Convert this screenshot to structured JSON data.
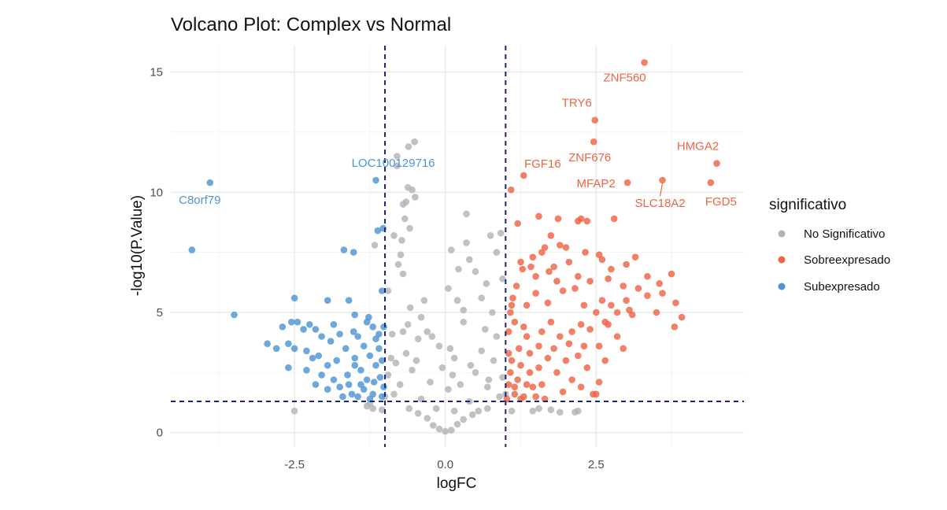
{
  "chart_data": {
    "type": "scatter",
    "title": "Volcano Plot: Complex vs Normal",
    "xlabel": "logFC",
    "ylabel": "-log10(P.Value)",
    "xlim": [
      -4.55,
      4.95
    ],
    "ylim": [
      -0.6,
      16.1
    ],
    "x_ticks": [
      -2.5,
      0.0,
      2.5
    ],
    "x_tick_labels": [
      "-2.5",
      "0.0",
      "2.5"
    ],
    "y_ticks": [
      0,
      5,
      10,
      15
    ],
    "y_tick_labels": [
      "0",
      "5",
      "10",
      "15"
    ],
    "grid": true,
    "thresholds": {
      "logFC": [
        -1,
        1
      ],
      "neg_log10_p": 1.3
    },
    "legend": {
      "title": "significativo",
      "position": "right",
      "entries": [
        {
          "name": "No Significativo",
          "color": "#b3b3b3"
        },
        {
          "name": "Sobreexpresado",
          "color": "#ee6445"
        },
        {
          "name": "Subexpresado",
          "color": "#4d95d6"
        }
      ]
    },
    "colors": {
      "No Significativo": "#b3b3b3",
      "Sobreexpresado": "#ee6445",
      "Subexpresado": "#4d95d6",
      "threshold_line": "#1a237e"
    },
    "series": [
      {
        "name": "No Significativo",
        "points": [
          [
            -0.8,
            11.5
          ],
          [
            -0.51,
            12.1
          ],
          [
            -0.61,
            11.9
          ],
          [
            -0.8,
            11.1
          ],
          [
            -0.62,
            10.2
          ],
          [
            -0.55,
            10.1
          ],
          [
            -0.5,
            9.8
          ],
          [
            -0.65,
            9.6
          ],
          [
            -1.17,
            7.8
          ],
          [
            -0.7,
            9.5
          ],
          [
            -0.85,
            8.2
          ],
          [
            -0.72,
            8.0
          ],
          [
            0.35,
            9.1
          ],
          [
            0.92,
            8.3
          ],
          [
            0.75,
            8.2
          ],
          [
            0.35,
            7.9
          ],
          [
            0.85,
            7.5
          ],
          [
            0.1,
            7.6
          ],
          [
            0.4,
            7.2
          ],
          [
            0.5,
            6.7
          ],
          [
            0.68,
            6.2
          ],
          [
            0.05,
            6.0
          ],
          [
            0.2,
            5.5
          ],
          [
            0.3,
            5.1
          ],
          [
            -0.35,
            5.5
          ],
          [
            -0.4,
            4.8
          ],
          [
            -0.3,
            4.2
          ],
          [
            -0.22,
            4.0
          ],
          [
            0.08,
            3.5
          ],
          [
            -0.1,
            3.6
          ],
          [
            0.15,
            3.1
          ],
          [
            -0.62,
            4.5
          ],
          [
            -0.45,
            3.9
          ],
          [
            -0.7,
            4.2
          ],
          [
            -1.2,
            1.0
          ],
          [
            1.1,
            0.9
          ],
          [
            1.45,
            0.9
          ],
          [
            1.9,
            0.85
          ],
          [
            2.15,
            0.85
          ],
          [
            -2.5,
            0.9
          ],
          [
            -1.3,
            1.1
          ],
          [
            0.7,
            1.0
          ],
          [
            -0.9,
            3.1
          ],
          [
            -0.95,
            2.4
          ],
          [
            0.95,
            2.3
          ],
          [
            0.8,
            3.0
          ],
          [
            -0.85,
            1.6
          ],
          [
            0.9,
            1.5
          ],
          [
            -0.6,
            1.0
          ],
          [
            0.55,
            0.9
          ],
          [
            -0.3,
            0.6
          ],
          [
            0.3,
            0.55
          ],
          [
            -0.1,
            0.15
          ],
          [
            0.1,
            0.1
          ],
          [
            0.0,
            0.05
          ],
          [
            -0.2,
            0.3
          ],
          [
            0.2,
            0.35
          ],
          [
            -0.45,
            0.8
          ],
          [
            0.45,
            0.75
          ],
          [
            -0.75,
            2.0
          ],
          [
            0.7,
            1.9
          ],
          [
            -0.65,
            3.3
          ],
          [
            0.6,
            3.4
          ],
          [
            -0.55,
            2.6
          ],
          [
            0.5,
            2.5
          ],
          [
            -0.4,
            1.4
          ],
          [
            0.4,
            1.3
          ],
          [
            -0.95,
            5.9
          ],
          [
            0.95,
            6.4
          ],
          [
            -0.7,
            6.6
          ],
          [
            0.6,
            5.6
          ],
          [
            -0.78,
            7.0
          ],
          [
            0.3,
            4.6
          ],
          [
            -0.25,
            2.1
          ],
          [
            0.25,
            2.0
          ],
          [
            -0.15,
            1.0
          ],
          [
            0.15,
            0.9
          ],
          [
            -0.88,
            4.1
          ],
          [
            0.85,
            4.0
          ],
          [
            -0.58,
            5.2
          ],
          [
            0.78,
            5.0
          ],
          [
            -1.0,
            1.5
          ],
          [
            1.0,
            1.6
          ],
          [
            -0.67,
            8.9
          ],
          [
            -0.59,
            8.5
          ],
          [
            -0.74,
            7.4
          ],
          [
            0.22,
            6.8
          ],
          [
            0.66,
            4.3
          ],
          [
            -0.48,
            3.0
          ],
          [
            0.42,
            2.8
          ],
          [
            0.12,
            2.4
          ],
          [
            -0.05,
            2.7
          ],
          [
            0.05,
            1.8
          ],
          [
            -0.82,
            2.9
          ],
          [
            0.72,
            2.2
          ],
          [
            1.55,
            1.0
          ],
          [
            1.75,
            0.95
          ],
          [
            2.2,
            0.9
          ],
          [
            -1.05,
            0.95
          ],
          [
            -1.25,
            1.2
          ]
        ]
      },
      {
        "name": "Sobreexpresado",
        "points": [
          [
            3.3,
            15.4
          ],
          [
            2.48,
            13.0
          ],
          [
            2.46,
            12.1
          ],
          [
            1.3,
            10.7
          ],
          [
            1.09,
            10.1
          ],
          [
            3.6,
            10.5
          ],
          [
            4.5,
            11.2
          ],
          [
            3.02,
            10.4
          ],
          [
            4.4,
            10.4
          ],
          [
            1.55,
            9.0
          ],
          [
            1.87,
            8.9
          ],
          [
            2.25,
            8.9
          ],
          [
            2.35,
            8.8
          ],
          [
            2.8,
            8.9
          ],
          [
            2.2,
            8.8
          ],
          [
            1.2,
            8.7
          ],
          [
            1.75,
            8.2
          ],
          [
            1.9,
            7.8
          ],
          [
            1.45,
            7.3
          ],
          [
            1.6,
            7.5
          ],
          [
            1.65,
            7.7
          ],
          [
            2.0,
            7.7
          ],
          [
            2.32,
            7.5
          ],
          [
            2.55,
            7.4
          ],
          [
            3.15,
            7.3
          ],
          [
            1.25,
            7.1
          ],
          [
            1.8,
            6.9
          ],
          [
            2.05,
            7.1
          ],
          [
            2.6,
            7.2
          ],
          [
            3.0,
            7.0
          ],
          [
            2.75,
            6.8
          ],
          [
            3.35,
            6.5
          ],
          [
            3.55,
            6.2
          ],
          [
            3.75,
            6.6
          ],
          [
            1.5,
            6.5
          ],
          [
            1.85,
            6.3
          ],
          [
            2.4,
            6.3
          ],
          [
            2.2,
            6.5
          ],
          [
            3.2,
            6.0
          ],
          [
            3.6,
            5.8
          ],
          [
            3.35,
            5.7
          ],
          [
            3.0,
            5.5
          ],
          [
            3.05,
            5.1
          ],
          [
            3.82,
            5.4
          ],
          [
            2.75,
            5.3
          ],
          [
            2.5,
            5.0
          ],
          [
            2.85,
            5.0
          ],
          [
            3.8,
            4.4
          ],
          [
            3.92,
            4.8
          ],
          [
            3.1,
            4.9
          ],
          [
            2.65,
            4.6
          ],
          [
            2.7,
            4.5
          ],
          [
            2.25,
            4.5
          ],
          [
            2.4,
            4.3
          ],
          [
            1.15,
            4.6
          ],
          [
            1.35,
            4.0
          ],
          [
            1.6,
            4.2
          ],
          [
            1.9,
            4.0
          ],
          [
            2.05,
            3.7
          ],
          [
            2.3,
            3.6
          ],
          [
            2.55,
            3.6
          ],
          [
            2.95,
            3.5
          ],
          [
            2.2,
            3.2
          ],
          [
            1.7,
            3.1
          ],
          [
            1.4,
            3.3
          ],
          [
            1.1,
            3.0
          ],
          [
            1.25,
            2.8
          ],
          [
            1.55,
            2.7
          ],
          [
            1.85,
            2.5
          ],
          [
            2.1,
            2.2
          ],
          [
            2.45,
            1.6
          ],
          [
            2.55,
            2.1
          ],
          [
            2.5,
            1.6
          ],
          [
            1.05,
            2.0
          ],
          [
            1.15,
            1.6
          ],
          [
            1.3,
            1.5
          ],
          [
            1.45,
            1.9
          ],
          [
            1.65,
            1.4
          ],
          [
            1.95,
            1.7
          ],
          [
            2.25,
            1.9
          ],
          [
            1.05,
            4.2
          ],
          [
            1.08,
            5.0
          ],
          [
            1.12,
            5.6
          ],
          [
            1.18,
            6.1
          ],
          [
            1.22,
            3.5
          ],
          [
            1.35,
            5.3
          ],
          [
            1.5,
            5.8
          ],
          [
            1.7,
            5.4
          ],
          [
            1.95,
            5.9
          ],
          [
            2.15,
            6.0
          ],
          [
            1.02,
            1.4
          ],
          [
            1.08,
            2.5
          ],
          [
            1.2,
            2.2
          ],
          [
            1.4,
            2.5
          ],
          [
            1.6,
            2.0
          ],
          [
            1.8,
            3.5
          ],
          [
            2.0,
            3.0
          ],
          [
            2.35,
            2.7
          ],
          [
            2.65,
            3.0
          ],
          [
            2.85,
            4.0
          ],
          [
            1.28,
            6.8
          ],
          [
            1.42,
            6.9
          ],
          [
            1.72,
            6.7
          ],
          [
            2.7,
            6.4
          ],
          [
            2.95,
            6.1
          ],
          [
            3.5,
            5.0
          ],
          [
            1.05,
            3.3
          ],
          [
            1.1,
            5.3
          ],
          [
            1.3,
            4.4
          ],
          [
            1.55,
            3.6
          ],
          [
            1.75,
            4.6
          ],
          [
            2.1,
            4.2
          ],
          [
            2.3,
            5.3
          ],
          [
            2.6,
            5.5
          ],
          [
            1.15,
            1.9
          ],
          [
            1.35,
            2.0
          ],
          [
            1.5,
            1.5
          ],
          [
            1.25,
            1.4
          ]
        ]
      },
      {
        "name": "Subexpresado",
        "points": [
          [
            -3.9,
            10.4
          ],
          [
            -4.2,
            7.6
          ],
          [
            -3.5,
            4.9
          ],
          [
            -1.15,
            10.5
          ],
          [
            -1.12,
            8.4
          ],
          [
            -1.03,
            8.5
          ],
          [
            -1.68,
            7.6
          ],
          [
            -1.52,
            7.5
          ],
          [
            -1.05,
            5.9
          ],
          [
            -2.5,
            5.6
          ],
          [
            -1.95,
            5.5
          ],
          [
            -1.6,
            5.5
          ],
          [
            -2.55,
            4.6
          ],
          [
            -2.45,
            4.6
          ],
          [
            -2.25,
            4.5
          ],
          [
            -2.7,
            4.4
          ],
          [
            -1.5,
            4.9
          ],
          [
            -1.27,
            4.8
          ],
          [
            -1.3,
            4.6
          ],
          [
            -1.52,
            4.2
          ],
          [
            -1.2,
            4.4
          ],
          [
            -1.85,
            4.5
          ],
          [
            -2.05,
            4.0
          ],
          [
            -2.15,
            4.3
          ],
          [
            -2.35,
            4.3
          ],
          [
            -1.75,
            4.1
          ],
          [
            -1.45,
            4.0
          ],
          [
            -1.1,
            4.1
          ],
          [
            -2.95,
            3.7
          ],
          [
            -2.6,
            3.7
          ],
          [
            -2.8,
            3.5
          ],
          [
            -2.5,
            3.5
          ],
          [
            -2.3,
            3.4
          ],
          [
            -1.9,
            3.8
          ],
          [
            -1.65,
            3.5
          ],
          [
            -1.35,
            3.6
          ],
          [
            -2.1,
            3.2
          ],
          [
            -2.2,
            3.1
          ],
          [
            -1.95,
            2.8
          ],
          [
            -1.8,
            3.0
          ],
          [
            -1.5,
            3.1
          ],
          [
            -1.25,
            3.2
          ],
          [
            -2.6,
            2.7
          ],
          [
            -2.3,
            2.6
          ],
          [
            -2.05,
            2.4
          ],
          [
            -1.85,
            2.2
          ],
          [
            -1.62,
            2.4
          ],
          [
            -1.4,
            2.6
          ],
          [
            -1.15,
            2.8
          ],
          [
            -2.15,
            2.0
          ],
          [
            -1.95,
            1.8
          ],
          [
            -1.75,
            1.9
          ],
          [
            -1.55,
            1.6
          ],
          [
            -1.35,
            1.8
          ],
          [
            -1.18,
            2.1
          ],
          [
            -1.08,
            2.3
          ],
          [
            -1.05,
            1.5
          ],
          [
            -1.25,
            1.4
          ],
          [
            -1.45,
            1.5
          ],
          [
            -1.7,
            1.5
          ],
          [
            -1.1,
            3.5
          ],
          [
            -1.05,
            3.0
          ],
          [
            -1.3,
            2.2
          ],
          [
            -1.2,
            1.6
          ],
          [
            -1.6,
            2.0
          ],
          [
            -1.4,
            2.0
          ],
          [
            -1.02,
            4.4
          ],
          [
            -1.02,
            1.9
          ],
          [
            -1.15,
            3.9
          ],
          [
            -1.5,
            2.8
          ]
        ]
      }
    ],
    "annotations": [
      {
        "gene": "ZNF560",
        "x": 3.3,
        "y": 15.4,
        "group": "Sobreexpresado"
      },
      {
        "gene": "TRY6",
        "x": 2.48,
        "y": 13.0,
        "group": "Sobreexpresado"
      },
      {
        "gene": "ZNF676",
        "x": 2.46,
        "y": 12.1,
        "group": "Sobreexpresado"
      },
      {
        "gene": "HMGA2",
        "x": 4.5,
        "y": 11.2,
        "group": "Sobreexpresado"
      },
      {
        "gene": "FGF16",
        "x": 1.3,
        "y": 10.7,
        "group": "Sobreexpresado"
      },
      {
        "gene": "MFAP2",
        "x": 3.02,
        "y": 10.4,
        "group": "Sobreexpresado"
      },
      {
        "gene": "FGD5",
        "x": 4.4,
        "y": 10.4,
        "group": "Sobreexpresado"
      },
      {
        "gene": "SLC18A2",
        "x": 3.6,
        "y": 10.5,
        "group": "Sobreexpresado"
      },
      {
        "gene": "LOC100129716",
        "x": -1.15,
        "y": 10.5,
        "group": "Subexpresado"
      },
      {
        "gene": "C8orf79",
        "x": -3.9,
        "y": 10.4,
        "group": "Subexpresado"
      }
    ]
  }
}
